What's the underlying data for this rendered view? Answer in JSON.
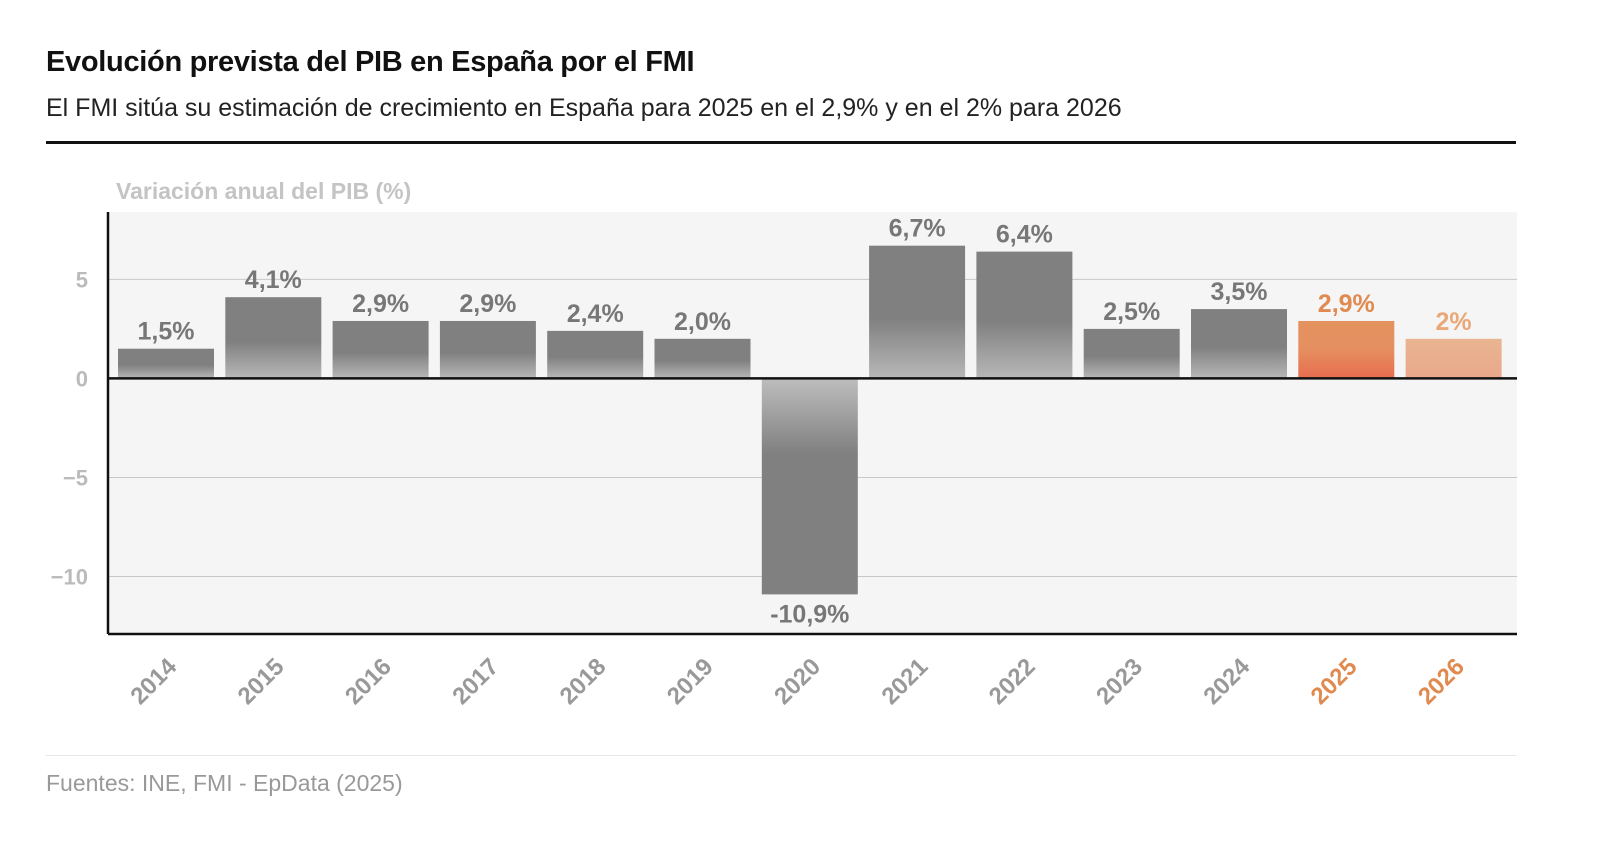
{
  "chart_data": {
    "type": "bar",
    "title": "Evolución prevista del PIB en España por el FMI",
    "subtitle": "El FMI sitúa su estimación de crecimiento en España para 2025 en el 2,9% y en el 2% para 2026",
    "ylabel": "Variación anual del PIB (%)",
    "xlabel": "",
    "categories": [
      "2014",
      "2015",
      "2016",
      "2017",
      "2018",
      "2019",
      "2020",
      "2021",
      "2022",
      "2023",
      "2024",
      "2025",
      "2026"
    ],
    "values": [
      1.5,
      4.1,
      2.9,
      2.9,
      2.4,
      2.0,
      -10.9,
      6.7,
      6.4,
      2.5,
      3.5,
      2.9,
      2.0
    ],
    "labels": [
      "1,5%",
      "4,1%",
      "2,9%",
      "2,9%",
      "2,4%",
      "2,0%",
      "-10,9%",
      "6,7%",
      "6,4%",
      "2,5%",
      "3,5%",
      "2,9%",
      "2%"
    ],
    "forecast": [
      false,
      false,
      false,
      false,
      false,
      false,
      false,
      false,
      false,
      false,
      false,
      true,
      true
    ],
    "yticks": [
      5,
      0,
      -5,
      -10
    ],
    "ytick_labels": [
      "5",
      "0",
      "−5",
      "−10"
    ],
    "ylim": [
      -12.9,
      8.4
    ],
    "grid": true,
    "colors": {
      "actual": "#808080",
      "forecast_2025": "#e4925e",
      "forecast_2026": "#e9b591",
      "forecast_label": "#e08a50",
      "label": "#777777",
      "plot_bg": "#f5f5f5"
    }
  },
  "source": "Fuentes: INE, FMI - EpData (2025)"
}
